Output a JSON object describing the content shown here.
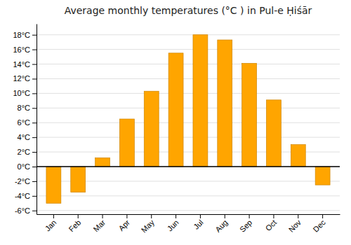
{
  "chart_data": {
    "type": "bar",
    "title": "Average monthly temperatures (°C ) in Pul-e Ḥiśār",
    "categories": [
      "Jan",
      "Feb",
      "Mar",
      "Apr",
      "May",
      "Jun",
      "Jul",
      "Aug",
      "Sep",
      "Oct",
      "Nov",
      "Dec"
    ],
    "values": [
      -5.0,
      -3.5,
      1.2,
      6.5,
      10.3,
      15.5,
      18.0,
      17.3,
      14.1,
      9.1,
      3.0,
      -2.5
    ],
    "color": "#FFA500",
    "ylim": [
      -6.5,
      19.5
    ],
    "yticks": [
      {
        "value": -6,
        "label": "-6°C"
      },
      {
        "value": -4,
        "label": "-4°C"
      },
      {
        "value": -2,
        "label": "-2°C"
      },
      {
        "value": 0,
        "label": "0°C"
      },
      {
        "value": 2,
        "label": "2°C"
      },
      {
        "value": 4,
        "label": "4°C"
      },
      {
        "value": 6,
        "label": "6°C"
      },
      {
        "value": 8,
        "label": "8°C"
      },
      {
        "value": 10,
        "label": "10°C"
      },
      {
        "value": 12,
        "label": "12°C"
      },
      {
        "value": 14,
        "label": "14°C"
      },
      {
        "value": 16,
        "label": "16°C"
      },
      {
        "value": 18,
        "label": "18°C"
      }
    ],
    "grid": true
  }
}
